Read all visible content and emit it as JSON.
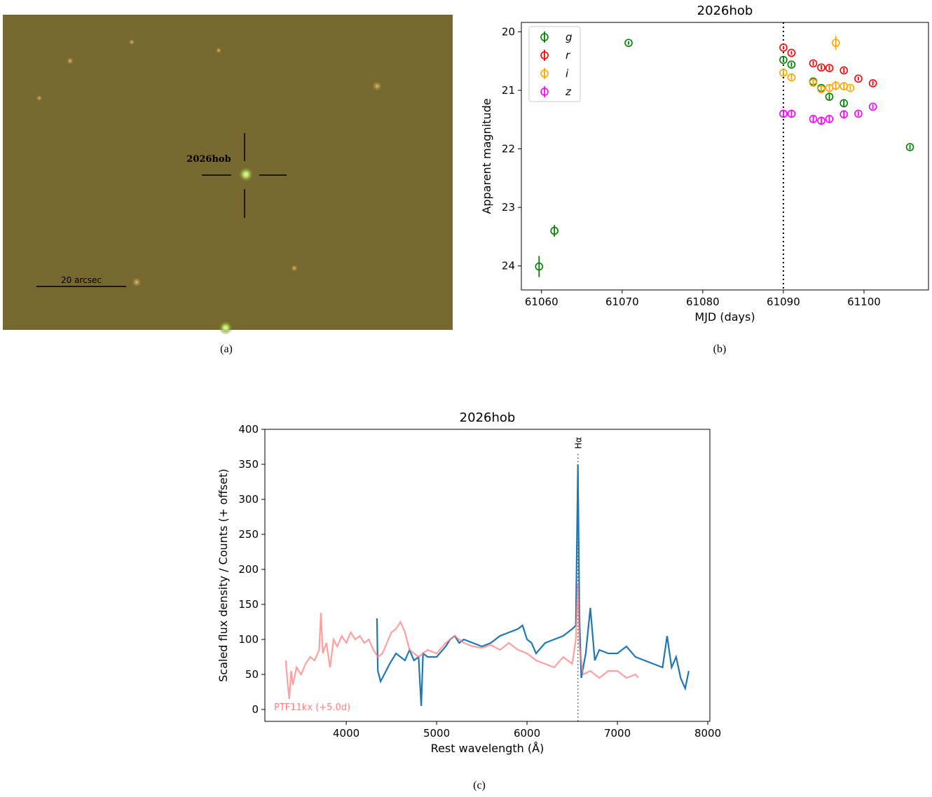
{
  "image": {
    "label": "2026hob",
    "scale_label": "20 arcsec",
    "caption": "(a)"
  },
  "chart_data": [
    {
      "type": "scatter",
      "title": "2026hob",
      "xlabel": "MJD (days)",
      "ylabel": "Apparent magnitude",
      "caption": "(b)",
      "xlim": [
        61057.5,
        61108.0
      ],
      "ylim": [
        24.41,
        19.84
      ],
      "xticks": [
        61060,
        61070,
        61080,
        61090,
        61100
      ],
      "yticks": [
        20,
        21,
        22,
        23,
        24
      ],
      "vline": 61090,
      "legend": "upper left",
      "series": [
        {
          "name": "g",
          "color": "#008000",
          "x": [
            61059.7,
            61061.6,
            61070.8,
            61090,
            61091,
            61093.7,
            61094.7,
            61095.7,
            61097.5,
            61105.7
          ],
          "values": [
            24.01,
            23.4,
            20.19,
            20.48,
            20.56,
            20.85,
            20.96,
            21.11,
            21.22,
            21.97
          ],
          "errors": [
            0.18,
            0.1,
            0.03,
            0.04,
            0.04,
            0.04,
            0.05,
            0.05,
            0.05,
            0.04
          ]
        },
        {
          "name": "r",
          "color": "#ff0000",
          "x": [
            61090,
            61091,
            61093.7,
            61094.7,
            61095.7,
            61097.5,
            61099.3,
            61101.1
          ],
          "values": [
            20.27,
            20.36,
            20.54,
            20.61,
            20.62,
            20.66,
            20.8,
            20.88
          ],
          "errors": [
            0.03,
            0.03,
            0.04,
            0.04,
            0.04,
            0.04,
            0.03,
            0.04
          ]
        },
        {
          "name": "i",
          "color": "#ffa500",
          "x": [
            61090,
            61091,
            61093.7,
            61094.7,
            61095.7,
            61096.5,
            61096.5,
            61097.5,
            61098.3
          ],
          "values": [
            20.7,
            20.78,
            20.87,
            20.98,
            20.96,
            20.19,
            20.92,
            20.93,
            20.96
          ],
          "errors": [
            0.05,
            0.05,
            0.05,
            0.06,
            0.06,
            0.12,
            0.08,
            0.06,
            0.04
          ]
        },
        {
          "name": "z",
          "color": "#ff00ff",
          "x": [
            61090,
            61091,
            61093.7,
            61094.7,
            61095.7,
            61097.5,
            61099.3,
            61101.1
          ],
          "values": [
            21.4,
            21.4,
            21.49,
            21.52,
            21.49,
            21.41,
            21.4,
            21.28
          ],
          "errors": [
            0.07,
            0.07,
            0.07,
            0.07,
            0.07,
            0.07,
            0.04,
            0.04
          ]
        }
      ]
    },
    {
      "type": "line",
      "title": "2026hob",
      "xlabel": "Rest wavelength (Å)",
      "ylabel": "Scaled flux density / Counts (+ offset)",
      "caption": "(c)",
      "xlim": [
        3100,
        8023
      ],
      "ylim": [
        -17,
        400
      ],
      "xticks": [
        4000,
        5000,
        6000,
        7000,
        8000
      ],
      "yticks": [
        0,
        50,
        100,
        150,
        200,
        250,
        300,
        350,
        400
      ],
      "annotation": {
        "x": 6563,
        "label": "Hα"
      },
      "series": [
        {
          "color": "#1f77b4",
          "x": [
            4340,
            4350,
            4380,
            4420,
            4480,
            4550,
            4600,
            4650,
            4700,
            4750,
            4800,
            4830,
            4850,
            4900,
            5000,
            5100,
            5150,
            5200,
            5250,
            5300,
            5400,
            5500,
            5600,
            5700,
            5800,
            5900,
            5950,
            6000,
            6050,
            6100,
            6200,
            6300,
            6400,
            6500,
            6540,
            6563,
            6580,
            6600,
            6650,
            6700,
            6750,
            6800,
            6900,
            7000,
            7100,
            7200,
            7300,
            7400,
            7500,
            7550,
            7600,
            7650,
            7700,
            7750,
            7790
          ],
          "values": [
            130,
            55,
            40,
            50,
            65,
            80,
            75,
            70,
            85,
            70,
            75,
            5,
            80,
            75,
            75,
            90,
            100,
            105,
            95,
            100,
            95,
            90,
            95,
            105,
            110,
            115,
            120,
            100,
            95,
            80,
            95,
            100,
            105,
            115,
            120,
            350,
            130,
            45,
            80,
            145,
            70,
            85,
            80,
            80,
            90,
            75,
            70,
            65,
            60,
            105,
            60,
            75,
            45,
            30,
            55
          ]
        },
        {
          "name": "PTF11kx (+5.0d)",
          "color": "#ff8080",
          "x": [
            3330,
            3350,
            3370,
            3390,
            3410,
            3450,
            3500,
            3550,
            3600,
            3650,
            3700,
            3720,
            3740,
            3780,
            3820,
            3860,
            3900,
            3950,
            4000,
            4050,
            4100,
            4150,
            4200,
            4250,
            4300,
            4350,
            4400,
            4450,
            4500,
            4550,
            4600,
            4650,
            4700,
            4750,
            4800,
            4850,
            4900,
            5000,
            5100,
            5200,
            5300,
            5400,
            5500,
            5600,
            5700,
            5800,
            5900,
            6000,
            6100,
            6200,
            6300,
            6400,
            6500,
            6540,
            6563,
            6580,
            6620,
            6700,
            6800,
            6900,
            7000,
            7100,
            7200,
            7230
          ],
          "values": [
            70,
            40,
            15,
            55,
            35,
            60,
            50,
            65,
            75,
            70,
            85,
            138,
            80,
            95,
            60,
            100,
            90,
            105,
            95,
            110,
            100,
            105,
            95,
            100,
            85,
            75,
            80,
            95,
            110,
            115,
            125,
            110,
            85,
            80,
            75,
            80,
            85,
            80,
            95,
            105,
            95,
            90,
            88,
            92,
            85,
            95,
            85,
            80,
            70,
            65,
            60,
            75,
            65,
            100,
            180,
            90,
            50,
            55,
            45,
            55,
            55,
            45,
            50,
            45
          ]
        }
      ]
    }
  ]
}
